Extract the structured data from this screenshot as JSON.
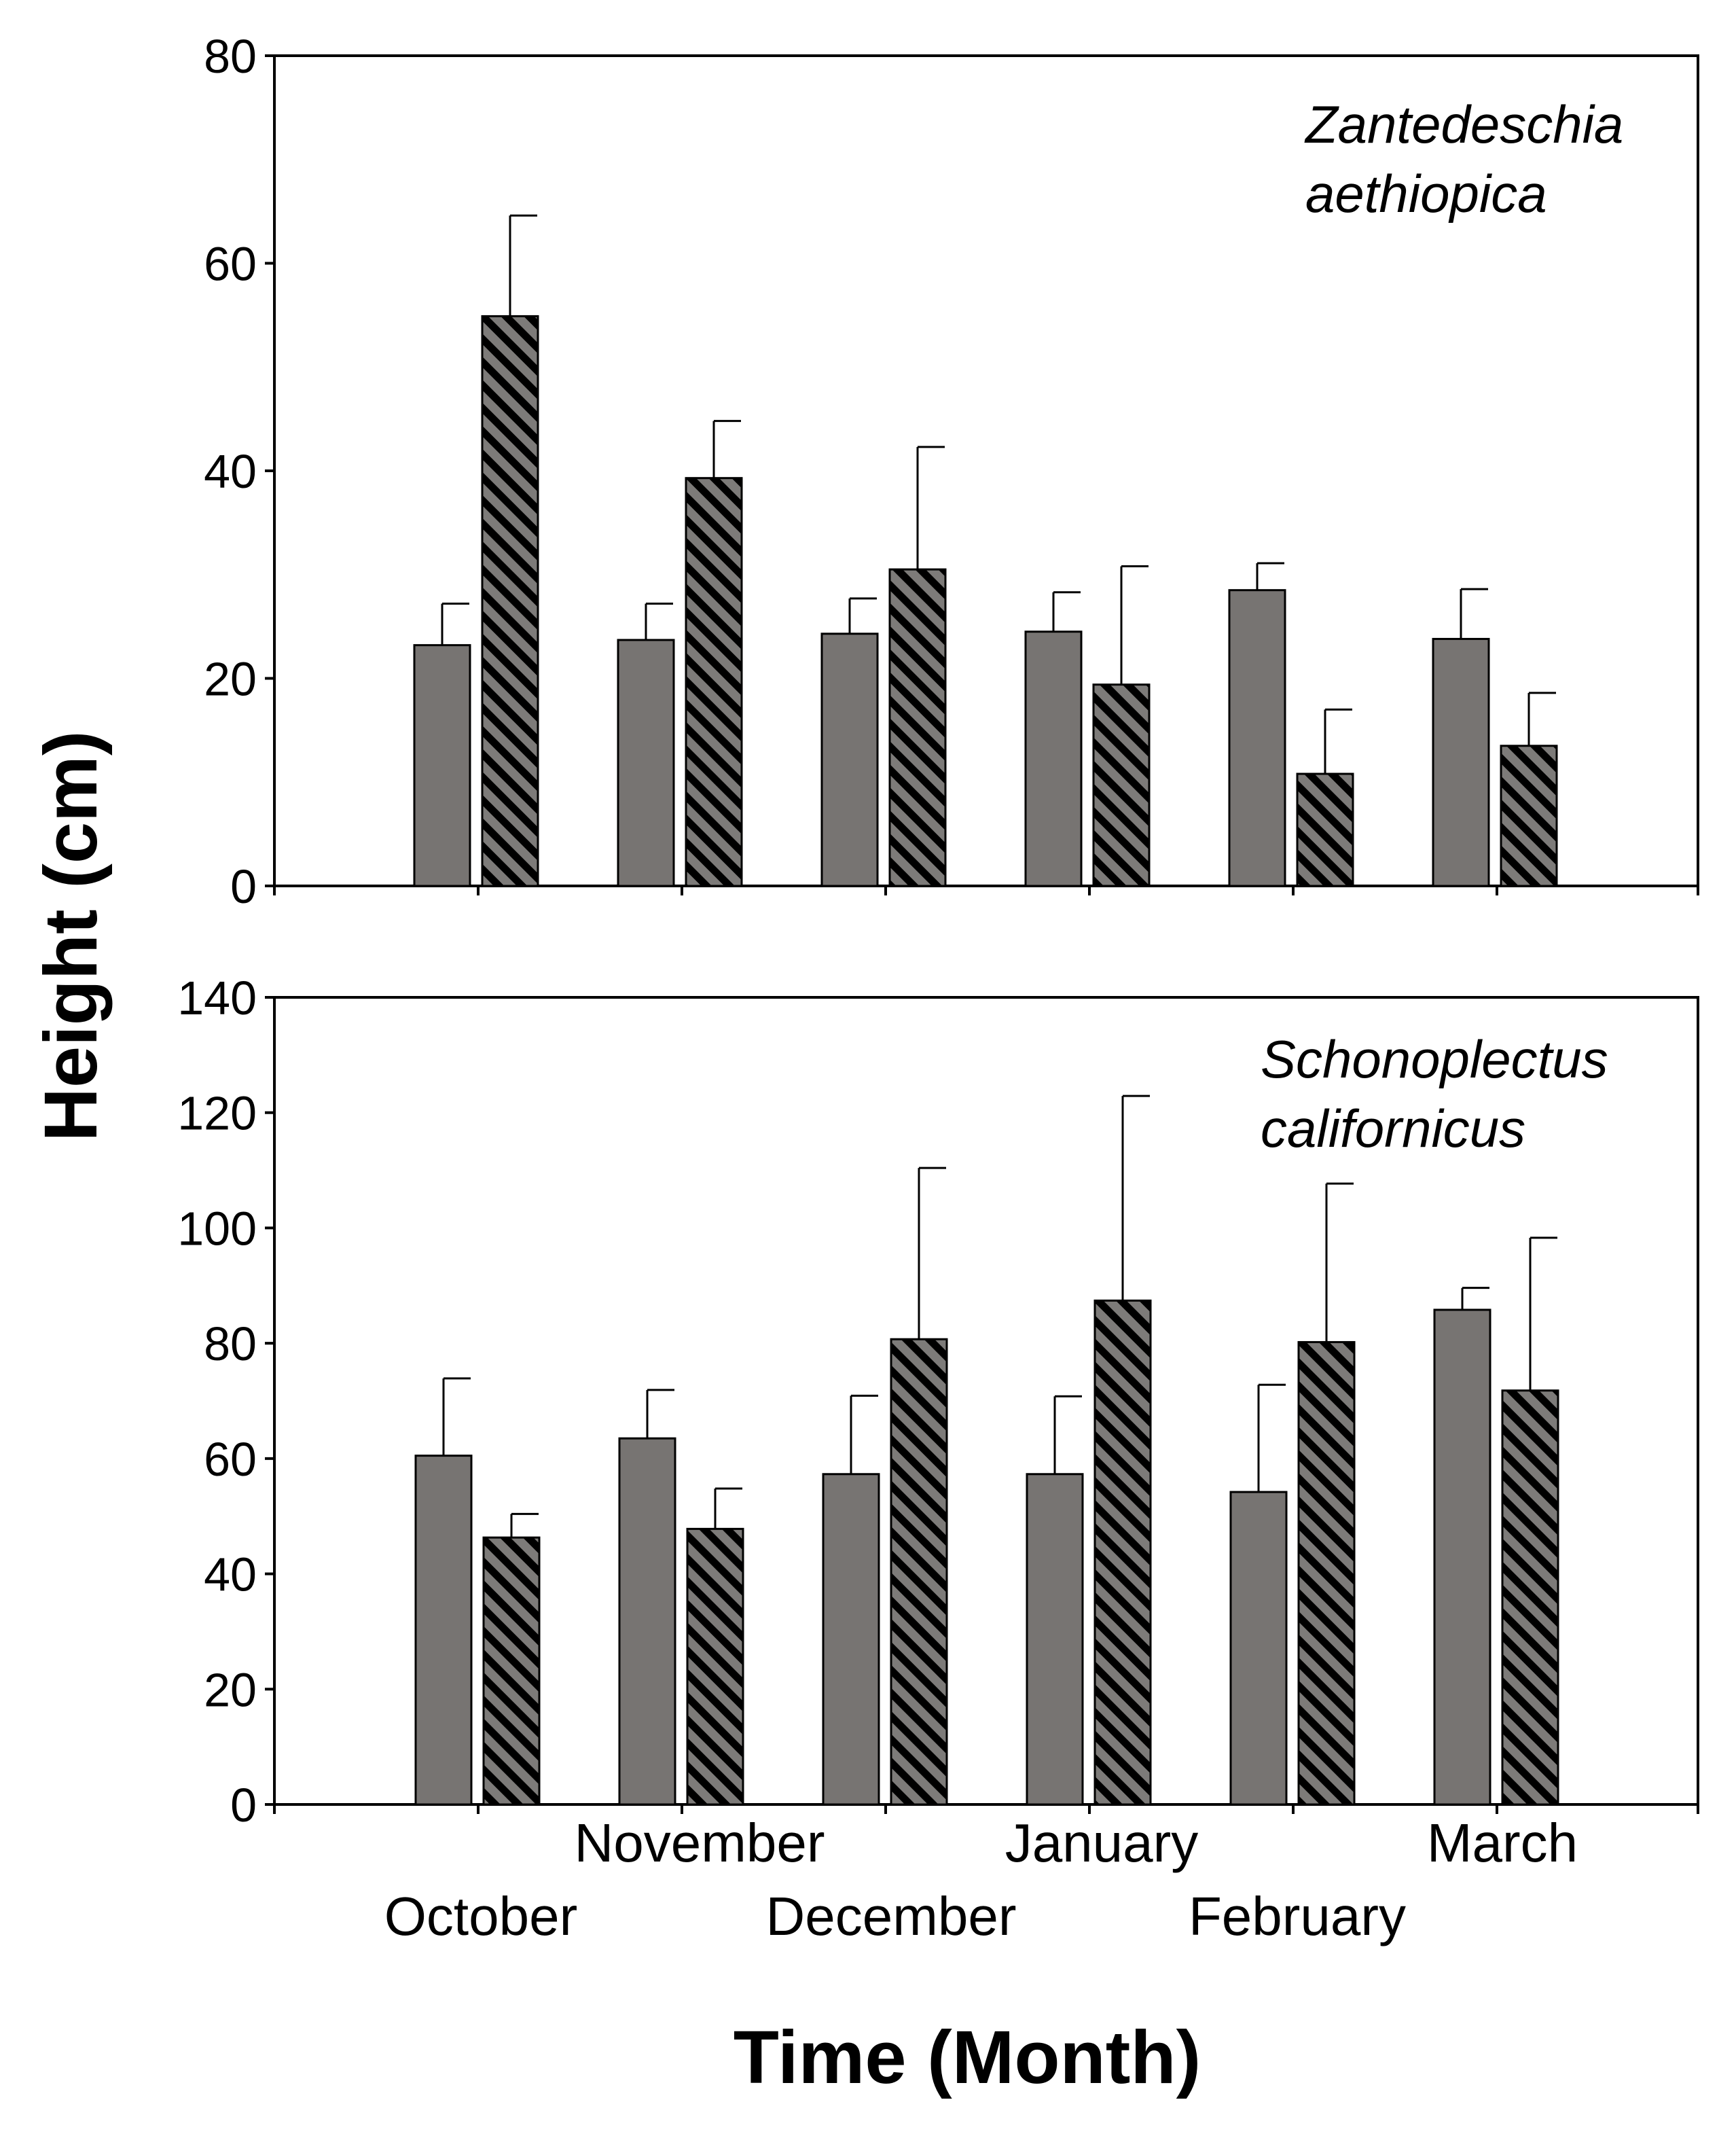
{
  "colors": {
    "solid_bar": "#777472",
    "hatched_bar_base": "#7d7b79",
    "hatch_stripe": "#000000",
    "axis": "#000000",
    "background": "#ffffff"
  },
  "chart_data": [
    {
      "type": "bar",
      "panel": "top",
      "species": [
        "Zantedeschia",
        "aethiopica"
      ],
      "categories": [
        "October",
        "November",
        "December",
        "January",
        "February",
        "March"
      ],
      "ylim": [
        0,
        80
      ],
      "yticks": [
        "0",
        "20",
        "40",
        "60",
        "80"
      ],
      "series": [
        {
          "name": "solid",
          "pattern": "solid",
          "values": [
            23.2,
            23.7,
            24.3,
            24.5,
            28.5,
            23.8
          ],
          "errors": [
            4.0,
            3.5,
            3.4,
            3.8,
            2.6,
            4.8
          ]
        },
        {
          "name": "hatched",
          "pattern": "hatched",
          "values": [
            54.9,
            39.3,
            30.5,
            19.4,
            10.8,
            13.5
          ],
          "errors": [
            9.7,
            5.5,
            11.8,
            11.4,
            6.2,
            5.1
          ]
        }
      ]
    },
    {
      "type": "bar",
      "panel": "bottom",
      "species": [
        "Schonoplectus",
        "californicus"
      ],
      "categories": [
        "October",
        "November",
        "December",
        "January",
        "February",
        "March"
      ],
      "ylim": [
        0,
        140
      ],
      "yticks": [
        "0",
        "20",
        "40",
        "60",
        "80",
        "100",
        "120",
        "140"
      ],
      "series": [
        {
          "name": "solid",
          "pattern": "solid",
          "values": [
            60.5,
            63.5,
            57.3,
            57.3,
            54.2,
            85.8
          ],
          "errors": [
            13.4,
            8.4,
            13.6,
            13.5,
            18.6,
            3.8
          ]
        },
        {
          "name": "hatched",
          "pattern": "hatched",
          "values": [
            46.3,
            47.8,
            80.7,
            87.4,
            80.2,
            71.8
          ],
          "errors": [
            4.1,
            7.0,
            29.7,
            35.5,
            27.5,
            26.5
          ]
        }
      ]
    }
  ],
  "x_axis": {
    "title": "Time (Month)",
    "labels_upper": [
      "November",
      "January",
      "March"
    ],
    "labels_lower": [
      "October",
      "December",
      "February"
    ]
  },
  "y_axis": {
    "title": "Height (cm)"
  }
}
